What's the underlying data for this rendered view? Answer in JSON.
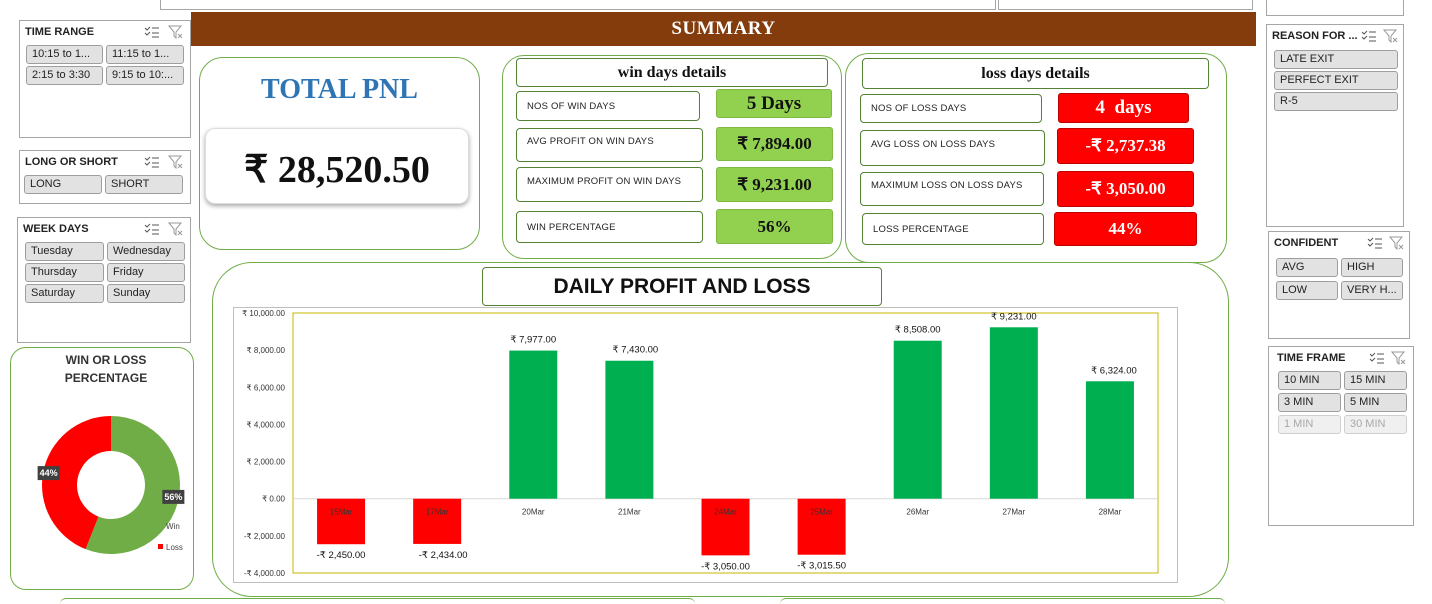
{
  "slicers": {
    "time_range": {
      "title": "TIME RANGE",
      "items": [
        "10:15 to 1...",
        "11:15 to 1...",
        "2:15 to 3:30",
        "9:15 to 10:..."
      ]
    },
    "long_short": {
      "title": "LONG OR SHORT",
      "items": [
        "LONG",
        "SHORT"
      ]
    },
    "week_days": {
      "title": "WEEK DAYS",
      "items": [
        "Tuesday",
        "Wednesday",
        "Thursday",
        "Friday",
        "Saturday",
        "Sunday"
      ]
    },
    "reason": {
      "title": "REASON FOR ...",
      "items": [
        "LATE EXIT",
        "PERFECT EXIT",
        "R-5"
      ]
    },
    "confident": {
      "title": "CONFIDENT",
      "items": [
        "AVG",
        "HIGH",
        "LOW",
        "VERY H..."
      ]
    },
    "time_frame": {
      "title": "TIME FRAME",
      "items": [
        "10 MIN",
        "15 MIN",
        "3 MIN",
        "5 MIN",
        "1 MIN",
        "30 MIN"
      ]
    }
  },
  "summary": {
    "title": "SUMMARY"
  },
  "total": {
    "title": "TOTAL PNL",
    "value": "₹ 28,520.50"
  },
  "win": {
    "header": "win days details",
    "rows": [
      {
        "label": "NOS OF WIN DAYS",
        "value": "5 Days"
      },
      {
        "label": "AVG PROFIT ON WIN DAYS",
        "value": "₹ 7,894.00"
      },
      {
        "label": "MAXIMUM PROFIT ON WIN DAYS",
        "value": "₹ 9,231.00"
      },
      {
        "label": "WIN PERCENTAGE",
        "value": "56%"
      }
    ]
  },
  "loss": {
    "header": "loss days details",
    "rows": [
      {
        "label": "NOS OF LOSS DAYS",
        "value": "4  days"
      },
      {
        "label": "AVG LOSS ON LOSS DAYS",
        "value": "-₹ 2,737.38"
      },
      {
        "label": "MAXIMUM LOSS ON LOSS DAYS",
        "value": "-₹ 3,050.00"
      },
      {
        "label": "LOSS PERCENTAGE",
        "value": "44%"
      }
    ]
  },
  "colors": {
    "profit": "#00b050",
    "loss": "#ff0000",
    "header": "#843c0c",
    "border": "#70ad47",
    "total_title": "#2e75b6"
  },
  "donut": {
    "title": "WIN OR LOSS PERCENTAGE",
    "chart_data": {
      "type": "pie",
      "categories": [
        "Win",
        "Loss"
      ],
      "values": [
        56,
        44
      ],
      "labels": [
        "56%",
        "44%"
      ],
      "colors": [
        "#70ad47",
        "#ff0000"
      ]
    }
  },
  "daily": {
    "title": "DAILY PROFIT AND LOSS",
    "chart_data": {
      "type": "bar",
      "categories": [
        "15Mar",
        "17Mar",
        "20Mar",
        "21Mar",
        "24Mar",
        "25Mar",
        "26Mar",
        "27Mar",
        "28Mar"
      ],
      "values": [
        -2450,
        -2434,
        7977,
        7430,
        -3050,
        -3015.5,
        8508,
        9231,
        6324
      ],
      "value_labels": [
        "-₹ 2,450.00",
        "-₹ 2,434.00",
        "₹ 7,977.00",
        "₹ 7,430.00",
        "-₹ 3,050.00",
        "-₹ 3,015.50",
        "₹ 8,508.00",
        "₹ 9,231.00",
        "₹ 6,324.00"
      ],
      "ylim": [
        -4000,
        10000
      ],
      "yticks": [
        10000,
        8000,
        6000,
        4000,
        2000,
        0,
        -2000,
        -4000
      ],
      "ytick_labels": [
        "₹ 10,000.00",
        "₹ 8,000.00",
        "₹ 6,000.00",
        "₹ 4,000.00",
        "₹ 2,000.00",
        "₹ 0.00",
        "-₹ 2,000.00",
        "-₹ 4,000.00"
      ],
      "grid": false,
      "legend": "none"
    }
  }
}
